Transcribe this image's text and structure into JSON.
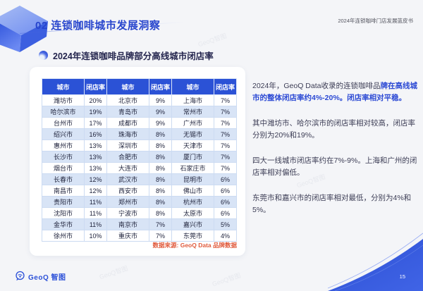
{
  "header": {
    "section_title": "02 连锁咖啡城市发展洞察",
    "doc_title": "2024年连锁咖啡门店发展蓝皮书"
  },
  "section": {
    "title": "2024年连锁咖啡品牌部分高线城市闭店率"
  },
  "table": {
    "headers": [
      "城市",
      "闭店率",
      "城市",
      "闭店率",
      "城市",
      "闭店率"
    ],
    "rows": [
      [
        "潍坊市",
        "20%",
        "北京市",
        "9%",
        "上海市",
        "7%"
      ],
      [
        "哈尔滨市",
        "19%",
        "青岛市",
        "9%",
        "常州市",
        "7%"
      ],
      [
        "台州市",
        "17%",
        "成都市",
        "9%",
        "广州市",
        "7%"
      ],
      [
        "绍兴市",
        "16%",
        "珠海市",
        "8%",
        "无锡市",
        "7%"
      ],
      [
        "惠州市",
        "13%",
        "深圳市",
        "8%",
        "天津市",
        "7%"
      ],
      [
        "长沙市",
        "13%",
        "合肥市",
        "8%",
        "厦门市",
        "7%"
      ],
      [
        "烟台市",
        "13%",
        "大连市",
        "8%",
        "石家庄市",
        "7%"
      ],
      [
        "长春市",
        "12%",
        "武汉市",
        "8%",
        "昆明市",
        "6%"
      ],
      [
        "南昌市",
        "12%",
        "西安市",
        "8%",
        "佛山市",
        "6%"
      ],
      [
        "贵阳市",
        "11%",
        "郑州市",
        "8%",
        "杭州市",
        "6%"
      ],
      [
        "沈阳市",
        "11%",
        "宁波市",
        "8%",
        "太原市",
        "6%"
      ],
      [
        "金华市",
        "11%",
        "南京市",
        "7%",
        "嘉兴市",
        "5%"
      ],
      [
        "徐州市",
        "10%",
        "重庆市",
        "7%",
        "东莞市",
        "4%"
      ]
    ]
  },
  "source": "数据来源: GeoQ Data 品牌数据",
  "insights": {
    "p1_normal": "2024年，GeoQ Data收录的连锁咖啡品",
    "p1_highlight": "牌在高线城市的整体闭店率约4%-20%。闭店率相对平稳。",
    "p2": "其中潍坊市、哈尔滨市的闭店率相对较高，闭店率分别为20%和19%。",
    "p3": "四大一线城市闭店率约在7%-9%。上海和广州的闭店率相对偏低。",
    "p4": "东莞市和嘉兴市的闭店率相对最低，分别为4%和5%。"
  },
  "footer": {
    "logo_text": "GeoQ 智图",
    "page_number": "15"
  },
  "watermark": "GeoQ智图",
  "colors": {
    "primary_blue": "#2b52d6",
    "light_row_blue": "#d8e4f6",
    "source_orange": "#e05a3c",
    "title_navy": "#23244d"
  }
}
